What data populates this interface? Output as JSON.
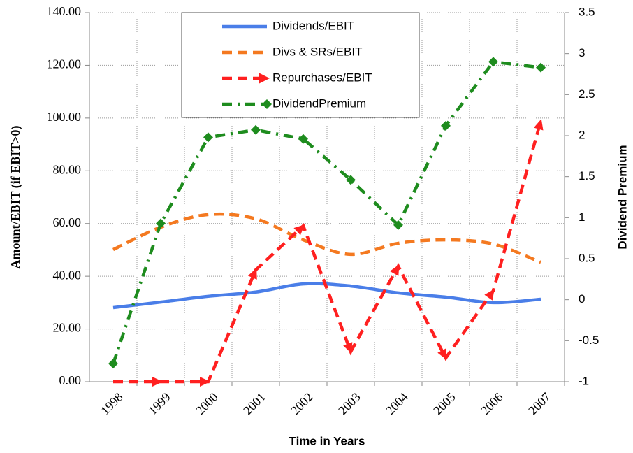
{
  "chart_data": {
    "type": "line",
    "xlabel": "Time in Years",
    "ylabel": "Amount/EBIT (if EBIT>0)",
    "y2label": "Dividend Premium",
    "categories": [
      "1998",
      "1999",
      "2000",
      "2001",
      "2002",
      "2003",
      "2004",
      "2005",
      "2006",
      "2007"
    ],
    "ylim": [
      0,
      140
    ],
    "yticks": [
      {
        "value": 0,
        "label": "0.00"
      },
      {
        "value": 20,
        "label": "20.00"
      },
      {
        "value": 40,
        "label": "40.00"
      },
      {
        "value": 60,
        "label": "60.00"
      },
      {
        "value": 80,
        "label": "80.00"
      },
      {
        "value": 100,
        "label": "100.00"
      },
      {
        "value": 120,
        "label": "120.00"
      },
      {
        "value": 140,
        "label": "140.00"
      }
    ],
    "y2lim": [
      -1,
      3.5
    ],
    "y2ticks": [
      -1,
      -0.5,
      0,
      0.5,
      1,
      1.5,
      2,
      2.5,
      3,
      3.5
    ],
    "grid": true,
    "legend": "top",
    "series": [
      {
        "name": "Dividends/EBIT",
        "color": "#4a7ee8",
        "linestyle": "solid",
        "smooth": true,
        "values": [
          28.1,
          30.2,
          32.4,
          34.0,
          37.1,
          36.3,
          33.7,
          32.1,
          30.0,
          31.3
        ]
      },
      {
        "name": "Divs & SRs/EBIT",
        "color": "#f47920",
        "linestyle": "dashed",
        "smooth": true,
        "values": [
          50.1,
          58.6,
          63.4,
          61.8,
          53.8,
          48.3,
          52.5,
          53.8,
          52.2,
          45.3
        ]
      },
      {
        "name": "Repurchases/EBIT",
        "color": "#ff2020",
        "linestyle": "dashed",
        "marker": "arrow",
        "values": [
          0,
          0,
          0,
          42.4,
          59.1,
          11.4,
          43.8,
          9.0,
          34.5,
          98.9
        ]
      },
      {
        "name": "DividendPremium",
        "color": "#1e8c1e",
        "linestyle": "dashdot",
        "marker": "diamond",
        "axis": "y2",
        "values": [
          -0.78,
          0.93,
          1.98,
          2.07,
          1.96,
          1.46,
          0.91,
          2.12,
          2.9,
          2.83
        ]
      }
    ]
  }
}
